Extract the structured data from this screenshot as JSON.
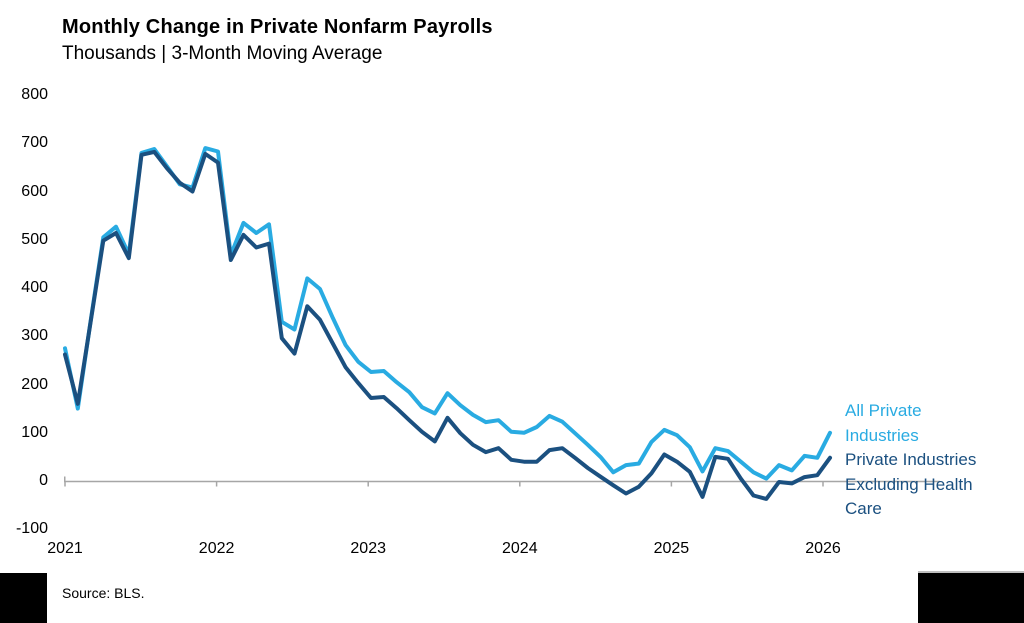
{
  "header": {
    "title": "Monthly Change in Private Nonfarm Payrolls",
    "subtitle": "Thousands | 3-Month Moving Average"
  },
  "source": {
    "label": "Source: BLS."
  },
  "colors": {
    "all_private": "#29ABE2",
    "ex_health_care": "#1B5080",
    "axis_gray": "#A6A6A6",
    "text_black": "#000000"
  },
  "legend": {
    "all_private_lines": [
      "All Private",
      "Industries"
    ],
    "ex_health_care_lines": [
      "Private Industries",
      "Excluding Health",
      "Care"
    ]
  },
  "chart_data": {
    "type": "line",
    "title": "Monthly Change in Private Nonfarm Payrolls",
    "subtitle": "Thousands | 3-Month Moving Average",
    "x_start_month": "2021-01",
    "x_end_month": "2026-01",
    "x_tick_labels": [
      "2021",
      "2022",
      "2023",
      "2024",
      "2025",
      "2026"
    ],
    "y_ticks": [
      800,
      700,
      600,
      500,
      400,
      300,
      200,
      100,
      0,
      -100
    ],
    "ylim": [
      -100,
      800
    ],
    "grid": false,
    "legend_position": "right",
    "series": [
      {
        "name": "All Private Industries",
        "color_key": "all_private",
        "values": [
          275,
          150,
          330,
          505,
          527,
          470,
          680,
          688,
          652,
          615,
          608,
          690,
          683,
          468,
          535,
          514,
          532,
          330,
          314,
          420,
          398,
          338,
          282,
          247,
          226,
          228,
          205,
          184,
          153,
          140,
          182,
          157,
          137,
          122,
          126,
          102,
          100,
          112,
          135,
          123,
          99,
          75,
          50,
          18,
          33,
          36,
          81,
          106,
          95,
          70,
          20,
          68,
          62,
          40,
          18,
          5,
          33,
          22,
          52,
          48,
          100
        ]
      },
      {
        "name": "Private Industries Excluding Health Care",
        "color_key": "ex_health_care",
        "values": [
          262,
          160,
          328,
          498,
          514,
          462,
          676,
          682,
          648,
          618,
          600,
          678,
          660,
          458,
          510,
          484,
          492,
          296,
          264,
          362,
          334,
          285,
          236,
          203,
          172,
          174,
          151,
          126,
          102,
          82,
          131,
          99,
          75,
          60,
          68,
          44,
          40,
          40,
          64,
          68,
          48,
          27,
          9,
          -9,
          -26,
          -12,
          16,
          55,
          40,
          19,
          -33,
          50,
          46,
          5,
          -30,
          -37,
          -2,
          -5,
          8,
          12,
          48
        ]
      }
    ]
  }
}
